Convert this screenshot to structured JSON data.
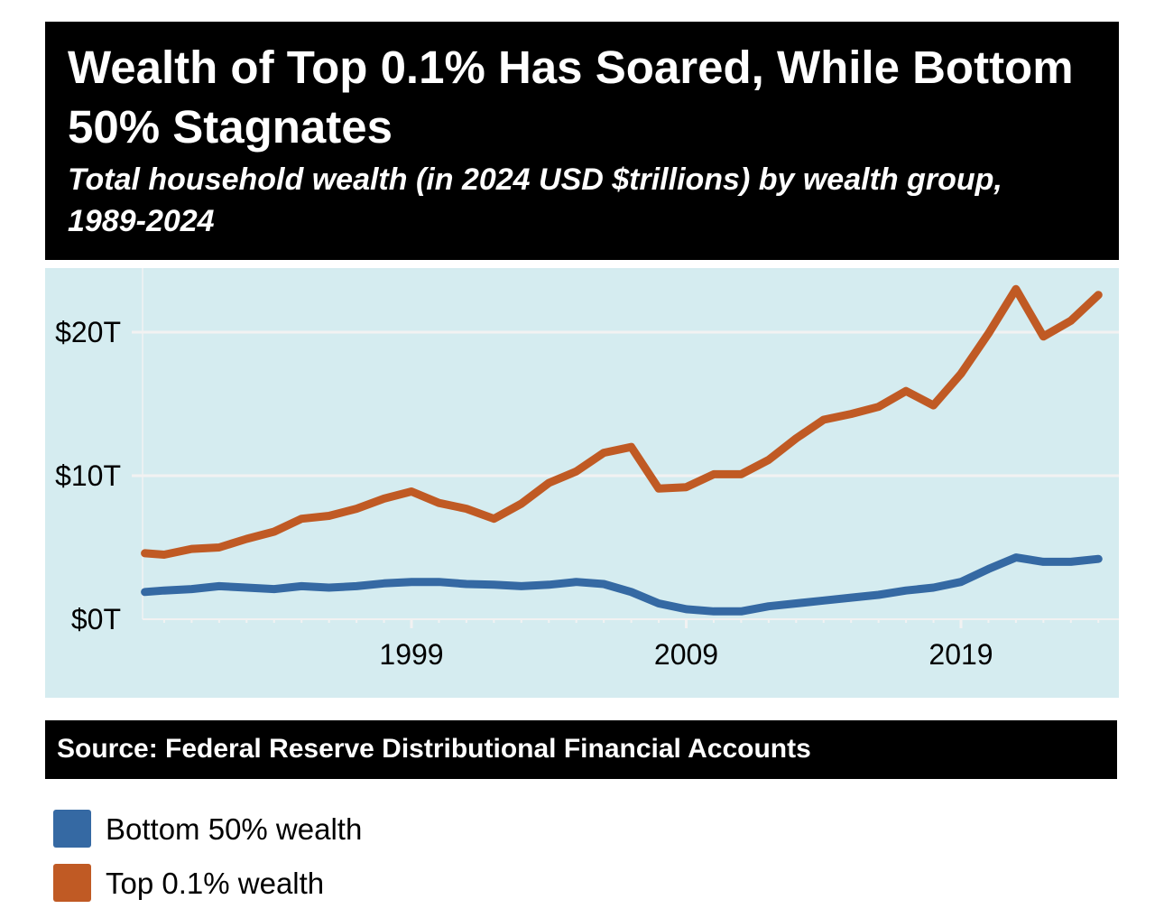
{
  "header": {
    "title": "Wealth of Top 0.1% Has Soared, While Bottom 50% Stagnates",
    "subtitle": "Total household wealth (in 2024 USD $trillions) by wealth group, 1989-2024"
  },
  "source": {
    "text": "Source: Federal Reserve Distributional Financial Accounts"
  },
  "legend": {
    "items": [
      {
        "label": "Bottom 50% wealth",
        "color": "#3569a3"
      },
      {
        "label": "Top 0.1% wealth",
        "color": "#c05a24"
      }
    ]
  },
  "colors": {
    "plot_background": "#d5ecf0",
    "gridline": "#f2f2f2"
  },
  "chart_data": {
    "type": "line",
    "title": "Wealth of Top 0.1% Has Soared, While Bottom 50% Stagnates",
    "subtitle": "Total household wealth (in 2024 USD $trillions) by wealth group, 1989-2024",
    "xlabel": "",
    "ylabel": "",
    "x": [
      1989.3,
      1990,
      1991,
      1992,
      1993,
      1994,
      1995,
      1996,
      1997,
      1998,
      1999,
      2000,
      2001,
      2002,
      2003,
      2004,
      2005,
      2006,
      2007,
      2008,
      2009,
      2010,
      2011,
      2012,
      2013,
      2014,
      2015,
      2016,
      2017,
      2018,
      2019,
      2020,
      2021,
      2022,
      2023,
      2024
    ],
    "series": [
      {
        "name": "Bottom 50% wealth",
        "color": "#3569a3",
        "values": [
          1.9,
          2.0,
          2.1,
          2.3,
          2.2,
          2.1,
          2.3,
          2.2,
          2.3,
          2.5,
          2.6,
          2.6,
          2.45,
          2.4,
          2.3,
          2.4,
          2.6,
          2.45,
          1.9,
          1.1,
          0.7,
          0.55,
          0.55,
          0.9,
          1.1,
          1.3,
          1.5,
          1.7,
          2.0,
          2.2,
          2.6,
          3.5,
          4.3,
          4.0,
          4.0,
          4.2
        ]
      },
      {
        "name": "Top 0.1% wealth",
        "color": "#c05a24",
        "values": [
          4.6,
          4.5,
          4.9,
          5.0,
          5.6,
          6.1,
          7.0,
          7.2,
          7.7,
          8.4,
          8.9,
          8.1,
          7.7,
          7.0,
          8.05,
          9.5,
          10.3,
          11.6,
          12.0,
          9.1,
          9.2,
          10.1,
          10.1,
          11.1,
          12.6,
          13.9,
          14.3,
          14.8,
          15.9,
          14.9,
          17.1,
          19.9,
          23.0,
          19.7,
          20.8,
          22.6
        ]
      }
    ],
    "y_ticks": [
      {
        "value": 0,
        "label": "$0T"
      },
      {
        "value": 10,
        "label": "$10T"
      },
      {
        "value": 20,
        "label": "$20T"
      }
    ],
    "x_ticks": [
      {
        "value": 1999,
        "label": "1999"
      },
      {
        "value": 2009,
        "label": "2009"
      },
      {
        "value": 2019,
        "label": "2019"
      }
    ],
    "x_minor_ticks_every": 1,
    "xlim": [
      1989,
      2025
    ],
    "ylim": [
      0,
      23.5
    ],
    "grid": true,
    "legend_position": "bottom-left"
  }
}
